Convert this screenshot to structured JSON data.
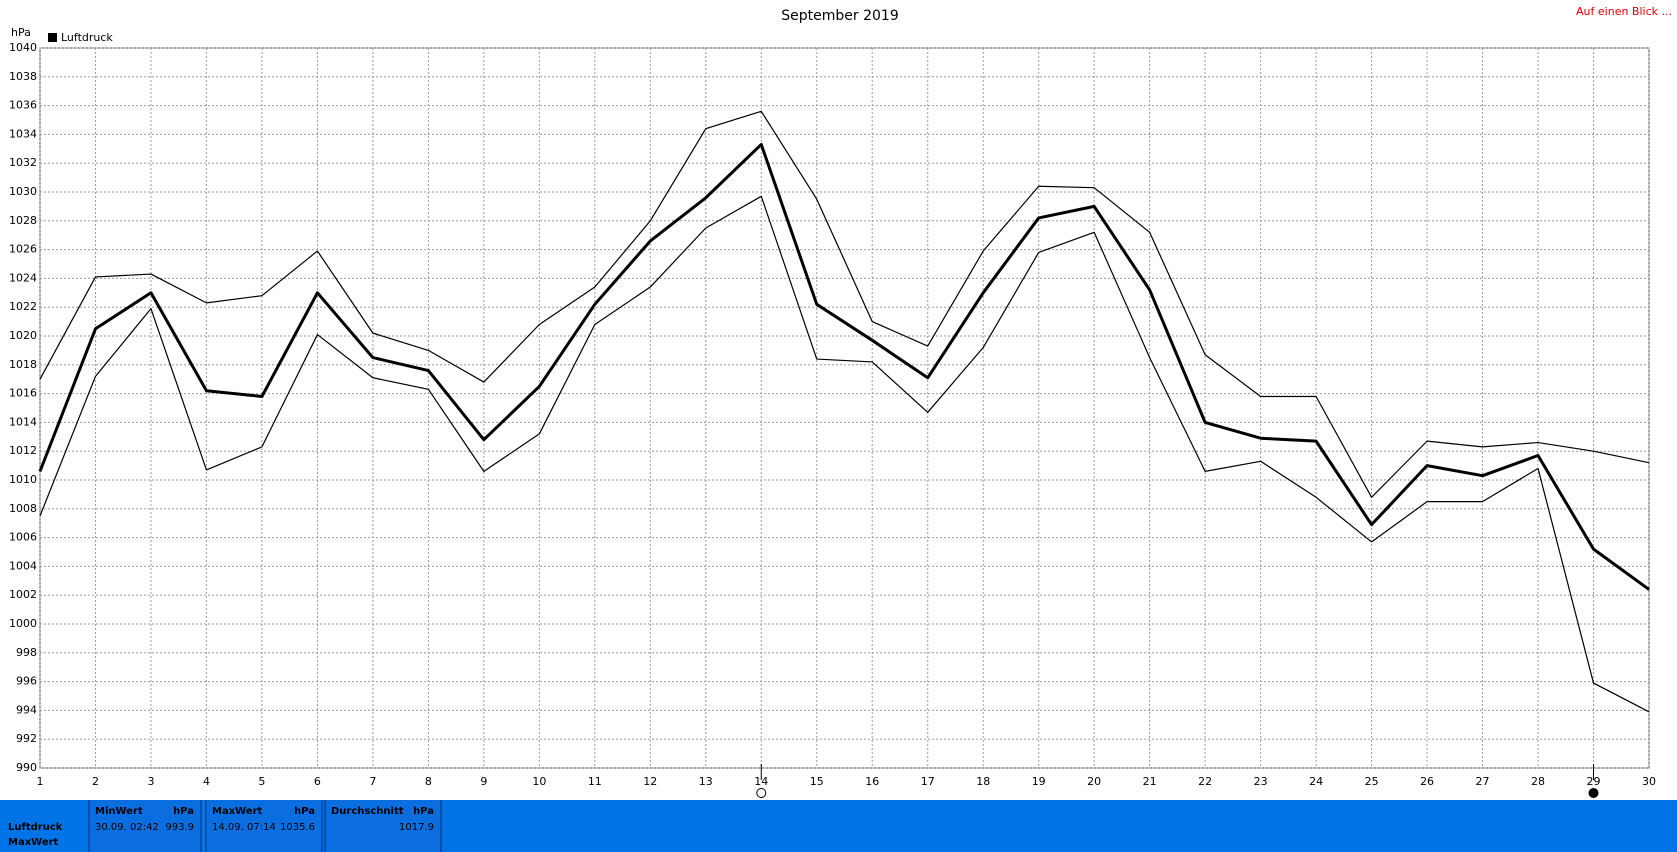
{
  "chart_data": {
    "type": "line",
    "title": "September 2019",
    "y_label": "hPa",
    "link": "Auf einen Blick ...",
    "x": [
      1,
      2,
      3,
      4,
      5,
      6,
      7,
      8,
      9,
      10,
      11,
      12,
      13,
      14,
      15,
      16,
      17,
      18,
      19,
      20,
      21,
      22,
      23,
      24,
      25,
      26,
      27,
      28,
      29,
      30
    ],
    "xlim": [
      1,
      30
    ],
    "xticks": [
      1,
      2,
      3,
      4,
      5,
      6,
      7,
      8,
      9,
      10,
      11,
      12,
      13,
      14,
      15,
      16,
      17,
      18,
      19,
      20,
      21,
      22,
      23,
      24,
      25,
      26,
      27,
      28,
      29,
      30
    ],
    "ylim": [
      990,
      1040
    ],
    "yticks": [
      990,
      992,
      994,
      996,
      998,
      1000,
      1002,
      1004,
      1006,
      1008,
      1010,
      1012,
      1014,
      1016,
      1018,
      1020,
      1022,
      1024,
      1026,
      1028,
      1030,
      1032,
      1034,
      1036,
      1038,
      1040
    ],
    "grid": true,
    "legend": "top-left",
    "series": [
      {
        "name": "Luftdruck",
        "color": "#000000",
        "width": 3,
        "values": [
          1010.6,
          1020.5,
          1023.0,
          1016.2,
          1015.8,
          1023.0,
          1018.5,
          1017.6,
          1012.8,
          1016.5,
          1022.2,
          1026.6,
          1029.6,
          1033.3,
          1022.2,
          1019.7,
          1017.1,
          1023.0,
          1028.2,
          1029.0,
          1023.2,
          1014.0,
          1012.9,
          1012.7,
          1006.9,
          1011.0,
          1010.3,
          1011.7,
          1005.2,
          1002.4
        ]
      },
      {
        "color": "#000000",
        "width": 1.2,
        "values": [
          1017.0,
          1024.1,
          1024.3,
          1022.3,
          1022.8,
          1025.9,
          1020.2,
          1019.0,
          1016.8,
          1020.8,
          1023.4,
          1028.0,
          1034.4,
          1035.6,
          1029.5,
          1021.0,
          1019.3,
          1025.9,
          1030.4,
          1030.3,
          1027.2,
          1018.7,
          1015.8,
          1015.8,
          1008.8,
          1012.7,
          1012.3,
          1012.6,
          1012.0,
          1011.2
        ]
      },
      {
        "color": "#000000",
        "width": 1.2,
        "values": [
          1007.5,
          1017.2,
          1021.9,
          1010.7,
          1012.3,
          1020.1,
          1017.1,
          1016.3,
          1010.6,
          1013.2,
          1020.8,
          1023.4,
          1027.5,
          1029.7,
          1018.4,
          1018.2,
          1014.7,
          1019.2,
          1025.8,
          1027.2,
          1018.5,
          1010.6,
          1011.3,
          1008.8,
          1005.7,
          1008.5,
          1008.5,
          1010.8,
          995.9,
          993.9
        ]
      }
    ],
    "markers": [
      {
        "x": 14,
        "filled": false
      },
      {
        "x": 29,
        "filled": true
      }
    ]
  },
  "summary": {
    "row_labels": [
      "Luftdruck",
      "MaxWert"
    ],
    "columns": [
      {
        "title": "MinWert",
        "unit": "hPa",
        "time": "30.09. 02:42",
        "value": "993.9"
      },
      {
        "title": "MaxWert",
        "unit": "hPa",
        "time": "14.09. 07:14",
        "value": "1035.6"
      },
      {
        "title": "Durchschnitt",
        "unit": "hPa",
        "value": "1017.9"
      }
    ]
  }
}
